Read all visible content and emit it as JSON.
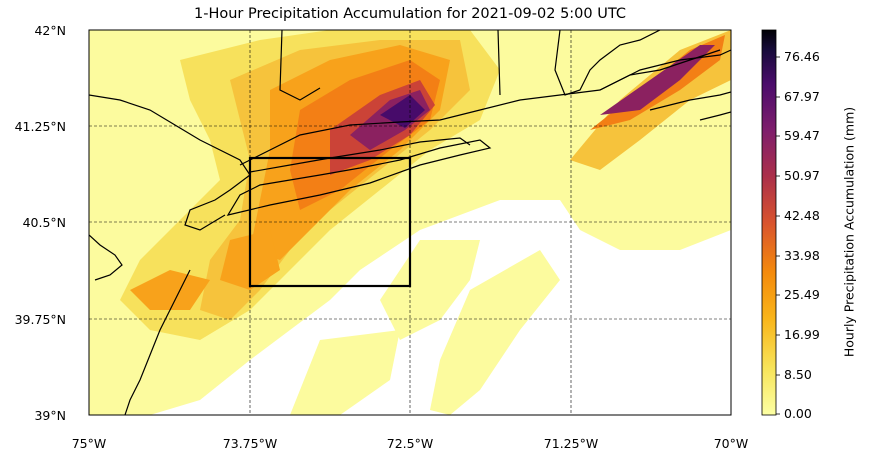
{
  "title": "1-Hour Precipitation Accumulation for 2021-09-02 5:00 UTC",
  "lon_ticks": [
    "75°W",
    "73.75°W",
    "72.5°W",
    "71.25°W",
    "70°W"
  ],
  "lat_ticks": [
    "42°N",
    "41.25°N",
    "40.5°N",
    "39.75°N",
    "39°N"
  ],
  "colorbar": {
    "label": "Hourly Precipitation Accumulation (mm)",
    "ticks": [
      "76.46",
      "67.97",
      "59.47",
      "50.97",
      "42.48",
      "33.98",
      "25.49",
      "16.99",
      "8.50",
      "0.00"
    ],
    "cmap": "inferno_r",
    "colors": [
      "#fcffa4",
      "#f7e964",
      "#f6c33c",
      "#f8a21b",
      "#f37f15",
      "#e35f26",
      "#cb4337",
      "#ac2f48",
      "#8b2160",
      "#6a176e",
      "#470b6a",
      "#240c4f",
      "#000004"
    ]
  },
  "box": {
    "lon_min": -73.75,
    "lon_max": -72.5,
    "lat_min": 40.0,
    "lat_max": 41.0
  },
  "map_extent": {
    "lon": [
      -75,
      -70
    ],
    "lat": [
      39,
      42
    ]
  }
}
